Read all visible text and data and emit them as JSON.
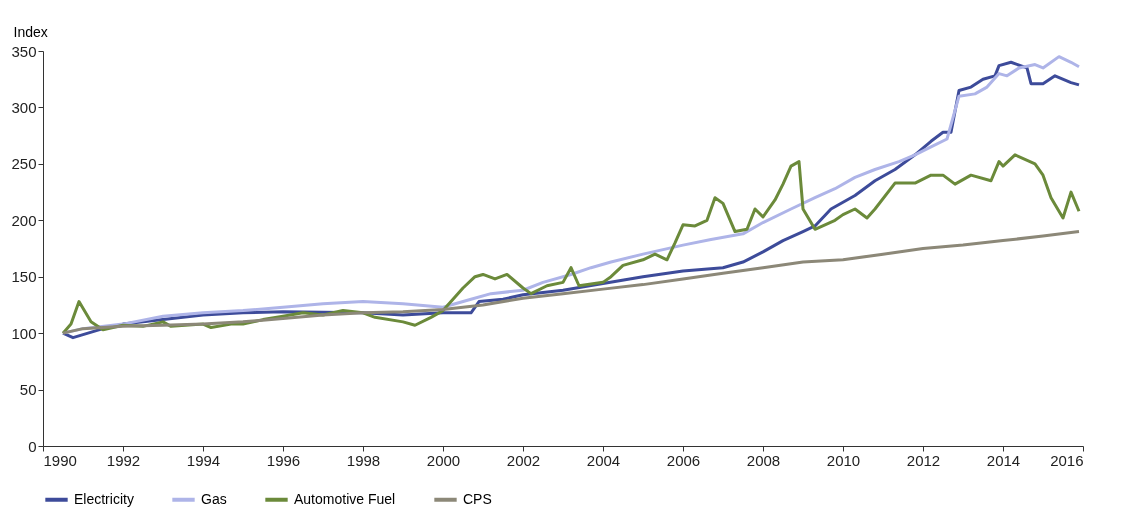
{
  "chart_data": {
    "type": "line",
    "ylabel": "Index",
    "xlim": [
      1990,
      2016
    ],
    "xticks": [
      1990,
      1992,
      1994,
      1996,
      1998,
      2000,
      2002,
      2004,
      2006,
      2008,
      2010,
      2012,
      2014,
      2016
    ],
    "ylim": [
      0,
      350
    ],
    "yticks": [
      0,
      50,
      100,
      150,
      200,
      250,
      300,
      350
    ],
    "grid": false,
    "legend": "bottom",
    "marker": "none",
    "line_style": "solid",
    "series": [
      {
        "name": "Electricity",
        "color": "#3d4b9a",
        "x": [
          1990.5,
          1990.75,
          1991.5,
          1992,
          1993,
          1994,
          1995,
          1996,
          1998,
          1999,
          2000,
          2000.7,
          2000.9,
          2001.5,
          2002,
          2003,
          2004,
          2005,
          2006,
          2007,
          2007.5,
          2008,
          2008.5,
          2009,
          2009.3,
          2009.7,
          2010.3,
          2010.8,
          2011.3,
          2011.8,
          2012.2,
          2012.5,
          2012.7,
          2012.9,
          2013.2,
          2013.5,
          2013.8,
          2013.9,
          2014.2,
          2014.6,
          2014.7,
          2015,
          2015.3,
          2015.7,
          2015.9
        ],
        "values": [
          100,
          96,
          104,
          108,
          112,
          116,
          118,
          119,
          118,
          116,
          118,
          118,
          128,
          130,
          134,
          138,
          144,
          150,
          155,
          158,
          163,
          172,
          182,
          190,
          195,
          210,
          222,
          235,
          245,
          258,
          270,
          278,
          278,
          315,
          318,
          325,
          328,
          337,
          340,
          335,
          321,
          321,
          328,
          322,
          320
        ]
      },
      {
        "name": "Gas",
        "color": "#aeb4e8",
        "x": [
          1990.5,
          1991,
          1992,
          1993,
          1994,
          1995,
          1996,
          1997,
          1998,
          1999,
          2000,
          2000.7,
          2001.2,
          2002,
          2002.5,
          2003.2,
          2003.7,
          2004.2,
          2005,
          2006,
          2006.7,
          2007.5,
          2008,
          2008.7,
          2009.3,
          2009.8,
          2010.3,
          2010.8,
          2011.4,
          2011.8,
          2012.2,
          2012.6,
          2012.9,
          2013.3,
          2013.6,
          2013.9,
          2014.1,
          2014.4,
          2014.8,
          2015,
          2015.4,
          2015.7,
          2015.9
        ],
        "values": [
          100,
          104,
          108,
          115,
          118,
          120,
          123,
          126,
          128,
          126,
          123,
          130,
          135,
          138,
          145,
          152,
          158,
          163,
          170,
          178,
          183,
          188,
          198,
          210,
          220,
          228,
          238,
          245,
          252,
          258,
          265,
          272,
          310,
          312,
          318,
          330,
          328,
          335,
          338,
          335,
          345,
          340,
          336
        ]
      },
      {
        "name": "Automotive Fuel",
        "color": "#6b8a3a",
        "x": [
          1990.5,
          1990.7,
          1990.9,
          1991.2,
          1991.5,
          1992,
          1992.5,
          1993,
          1993.2,
          1994,
          1994.2,
          1994.7,
          1995,
          1995.5,
          1996,
          1996.5,
          1997,
          1997.5,
          1998,
          1998.3,
          1999,
          1999.3,
          1999.7,
          2000,
          2000.3,
          2000.5,
          2000.8,
          2001,
          2001.3,
          2001.6,
          2002,
          2002.2,
          2002.6,
          2003,
          2003.2,
          2003.4,
          2004,
          2004.2,
          2004.5,
          2005,
          2005.3,
          2005.6,
          2005.8,
          2006,
          2006.3,
          2006.6,
          2006.8,
          2007,
          2007.3,
          2007.6,
          2007.8,
          2008,
          2008.3,
          2008.5,
          2008.7,
          2008.9,
          2009,
          2009.3,
          2009.8,
          2010,
          2010.3,
          2010.6,
          2010.8,
          2011.3,
          2011.8,
          2012.2,
          2012.5,
          2012.8,
          2013.2,
          2013.7,
          2013.9,
          2014,
          2014.3,
          2014.8,
          2015,
          2015.2,
          2015.5,
          2015.7,
          2015.9
        ],
        "values": [
          100,
          108,
          128,
          110,
          103,
          107,
          106,
          110,
          106,
          108,
          105,
          108,
          108,
          112,
          115,
          118,
          116,
          120,
          118,
          114,
          110,
          107,
          114,
          120,
          132,
          140,
          150,
          152,
          148,
          152,
          140,
          135,
          142,
          145,
          158,
          142,
          145,
          150,
          160,
          165,
          170,
          165,
          180,
          196,
          195,
          200,
          220,
          215,
          190,
          192,
          210,
          203,
          218,
          232,
          248,
          252,
          210,
          192,
          200,
          205,
          210,
          202,
          210,
          233,
          233,
          240,
          240,
          232,
          240,
          235,
          252,
          248,
          258,
          250,
          240,
          220,
          202,
          225,
          208
        ]
      },
      {
        "name": "CPS",
        "color": "#8c8878",
        "x": [
          1990.5,
          1991,
          1992,
          1993,
          1994,
          1995,
          1996,
          1997,
          1998,
          1999,
          2000,
          2001,
          2002,
          2003,
          2004,
          2005,
          2006,
          2007,
          2008,
          2009,
          2010,
          2011,
          2012,
          2013,
          2014,
          2015,
          2015.9
        ],
        "values": [
          100,
          104,
          106,
          107,
          108,
          110,
          113,
          116,
          118,
          119,
          121,
          125,
          131,
          135,
          139,
          143,
          148,
          153,
          158,
          163,
          165,
          170,
          175,
          178,
          182,
          186,
          190
        ]
      }
    ]
  }
}
